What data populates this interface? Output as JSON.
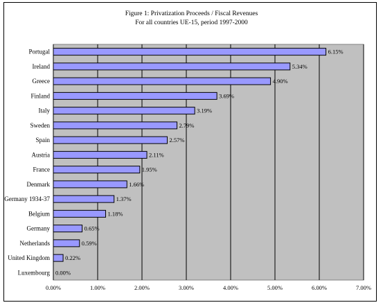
{
  "chart_data": {
    "type": "bar",
    "orientation": "horizontal",
    "title": "Figure 1:  Privatization Proceeds / Fiscal Revenues",
    "subtitle": "For all countries UE-15, period 1997-2000",
    "categories": [
      "Portugal",
      "Ireland",
      "Greece",
      "Finland",
      "Italy",
      "Sweden",
      "Spain",
      "Austria",
      "France",
      "Denmark",
      "Germany 1934-37",
      "Belgium",
      "Germany",
      "Netherlands",
      "United Kingdom",
      "Luxembourg"
    ],
    "values": [
      6.15,
      5.34,
      4.9,
      3.69,
      3.19,
      2.79,
      2.57,
      2.11,
      1.95,
      1.66,
      1.37,
      1.18,
      0.65,
      0.59,
      0.22,
      0.0
    ],
    "data_labels": [
      "6.15%",
      "5.34%",
      "4.90%",
      "3.69%",
      "3.19%",
      "2.79%",
      "2.57%",
      "2.11%",
      "1.95%",
      "1.66%",
      "1.37%",
      "1.18%",
      "0.65%",
      "0.59%",
      "0.22%",
      "0.00%"
    ],
    "xticks": [
      0,
      1,
      2,
      3,
      4,
      5,
      6,
      7
    ],
    "xtick_labels": [
      "0.00%",
      "1.00%",
      "2.00%",
      "3.00%",
      "4.00%",
      "5.00%",
      "6.00%",
      "7.00%"
    ],
    "xlim": [
      0,
      7
    ],
    "grid": true,
    "legend": false,
    "colors": {
      "bar": "#9999ff",
      "plot_bg": "#c0c0c0",
      "bar_edge": "#000000"
    }
  }
}
